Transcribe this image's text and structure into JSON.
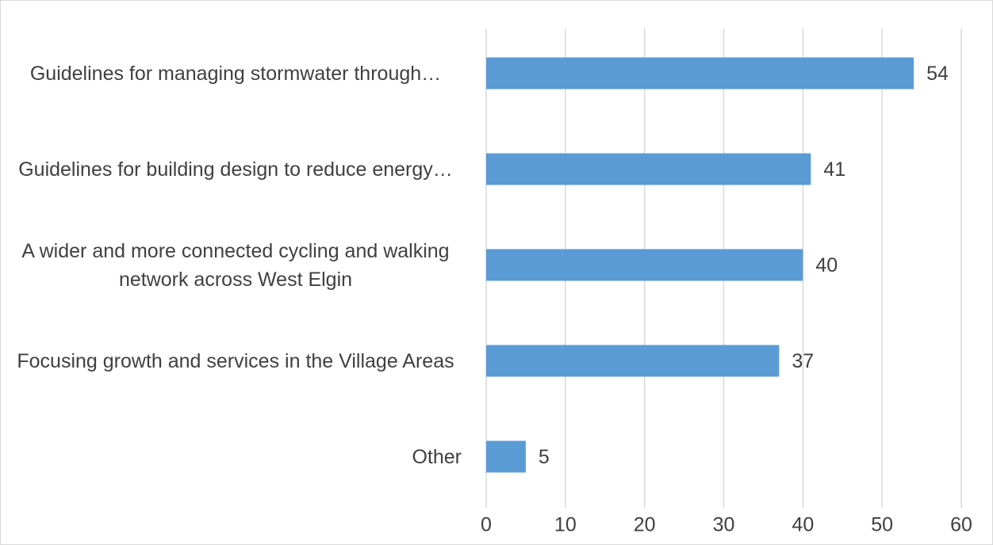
{
  "chart_data": {
    "type": "bar",
    "orientation": "horizontal",
    "categories": [
      "Guidelines for managing stormwater through…",
      "Guidelines for building design to reduce energy…",
      "A wider and more connected cycling and walking network across West Elgin",
      "Focusing growth and services in the Village Areas",
      "Other"
    ],
    "values": [
      54,
      41,
      40,
      37,
      5
    ],
    "color": "#5b9bd5",
    "xlim": [
      0,
      60
    ],
    "xticks": [
      0,
      10,
      20,
      30,
      40,
      50,
      60
    ],
    "grid": true
  }
}
